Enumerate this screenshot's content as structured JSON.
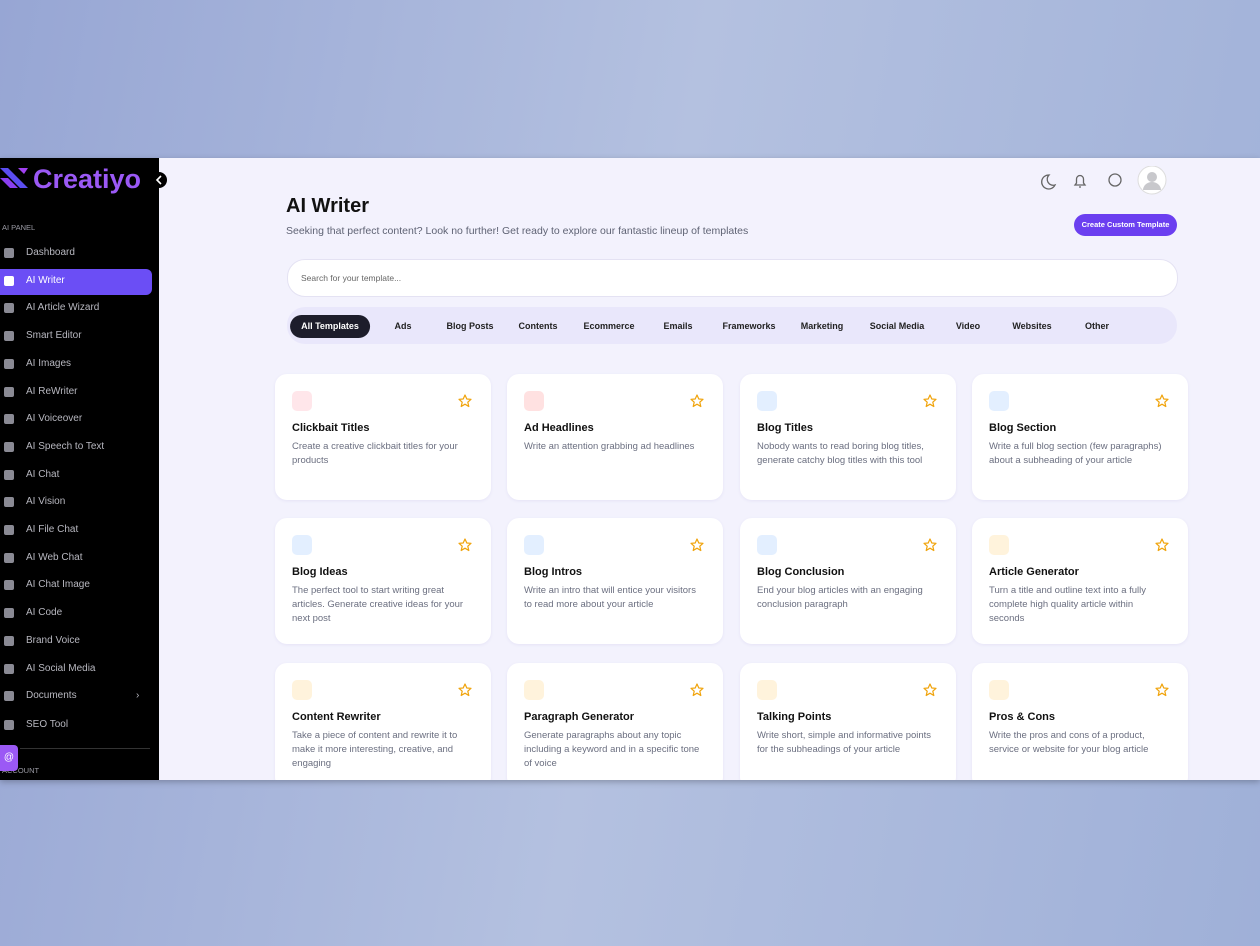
{
  "sidebar": {
    "logo": "Creatiyo",
    "section": "AI PANEL",
    "items": [
      "Dashboard",
      "AI Writer",
      "AI Article Wizard",
      "Smart Editor",
      "AI Images",
      "AI ReWriter",
      "AI Voiceover",
      "AI Speech to Text",
      "AI Chat",
      "AI Vision",
      "AI File Chat",
      "AI Web Chat",
      "AI Chat Image",
      "AI Code",
      "Brand Voice",
      "AI Social Media",
      "Documents",
      "SEO Tool"
    ],
    "account_section": "ACCOUNT"
  },
  "header": {
    "title": "AI Writer",
    "subtitle": "Seeking that perfect content? Look no further! Get ready to explore our fantastic lineup of templates",
    "button": "Create Custom Template",
    "search_placeholder": "Search for your template..."
  },
  "filters": [
    "All Templates",
    "Ads",
    "Blog Posts",
    "Contents",
    "Ecommerce",
    "Emails",
    "Frameworks",
    "Marketing",
    "Social Media",
    "Video",
    "Websites",
    "Other"
  ],
  "cards": [
    {
      "title": "Clickbait Titles",
      "description": "Create a creative clickbait titles for your products"
    },
    {
      "title": "Ad Headlines",
      "description": "Write an attention grabbing ad headlines"
    },
    {
      "title": "Blog Titles",
      "description": "Nobody wants to read boring blog titles, generate catchy blog titles with this tool"
    },
    {
      "title": "Blog Section",
      "description": "Write a full blog section (few paragraphs) about a subheading of your article"
    },
    {
      "title": "Blog Ideas",
      "description": "The perfect tool to start writing great articles. Generate creative ideas for your next post"
    },
    {
      "title": "Blog Intros",
      "description": "Write an intro that will entice your visitors to read more about your article"
    },
    {
      "title": "Blog Conclusion",
      "description": "End your blog articles with an engaging conclusion paragraph"
    },
    {
      "title": "Article Generator",
      "description": "Turn a title and outline text into a fully complete high quality article within seconds"
    },
    {
      "title": "Content Rewriter",
      "description": "Take a piece of content and rewrite it to make it more interesting, creative, and engaging"
    },
    {
      "title": "Paragraph Generator",
      "description": "Generate paragraphs about any topic including a keyword and in a specific tone of voice"
    },
    {
      "title": "Talking Points",
      "description": "Write short, simple and informative points for the subheadings of your article"
    },
    {
      "title": "Pros & Cons",
      "description": "Write the pros and cons of a product, service or website for your blog article"
    }
  ]
}
